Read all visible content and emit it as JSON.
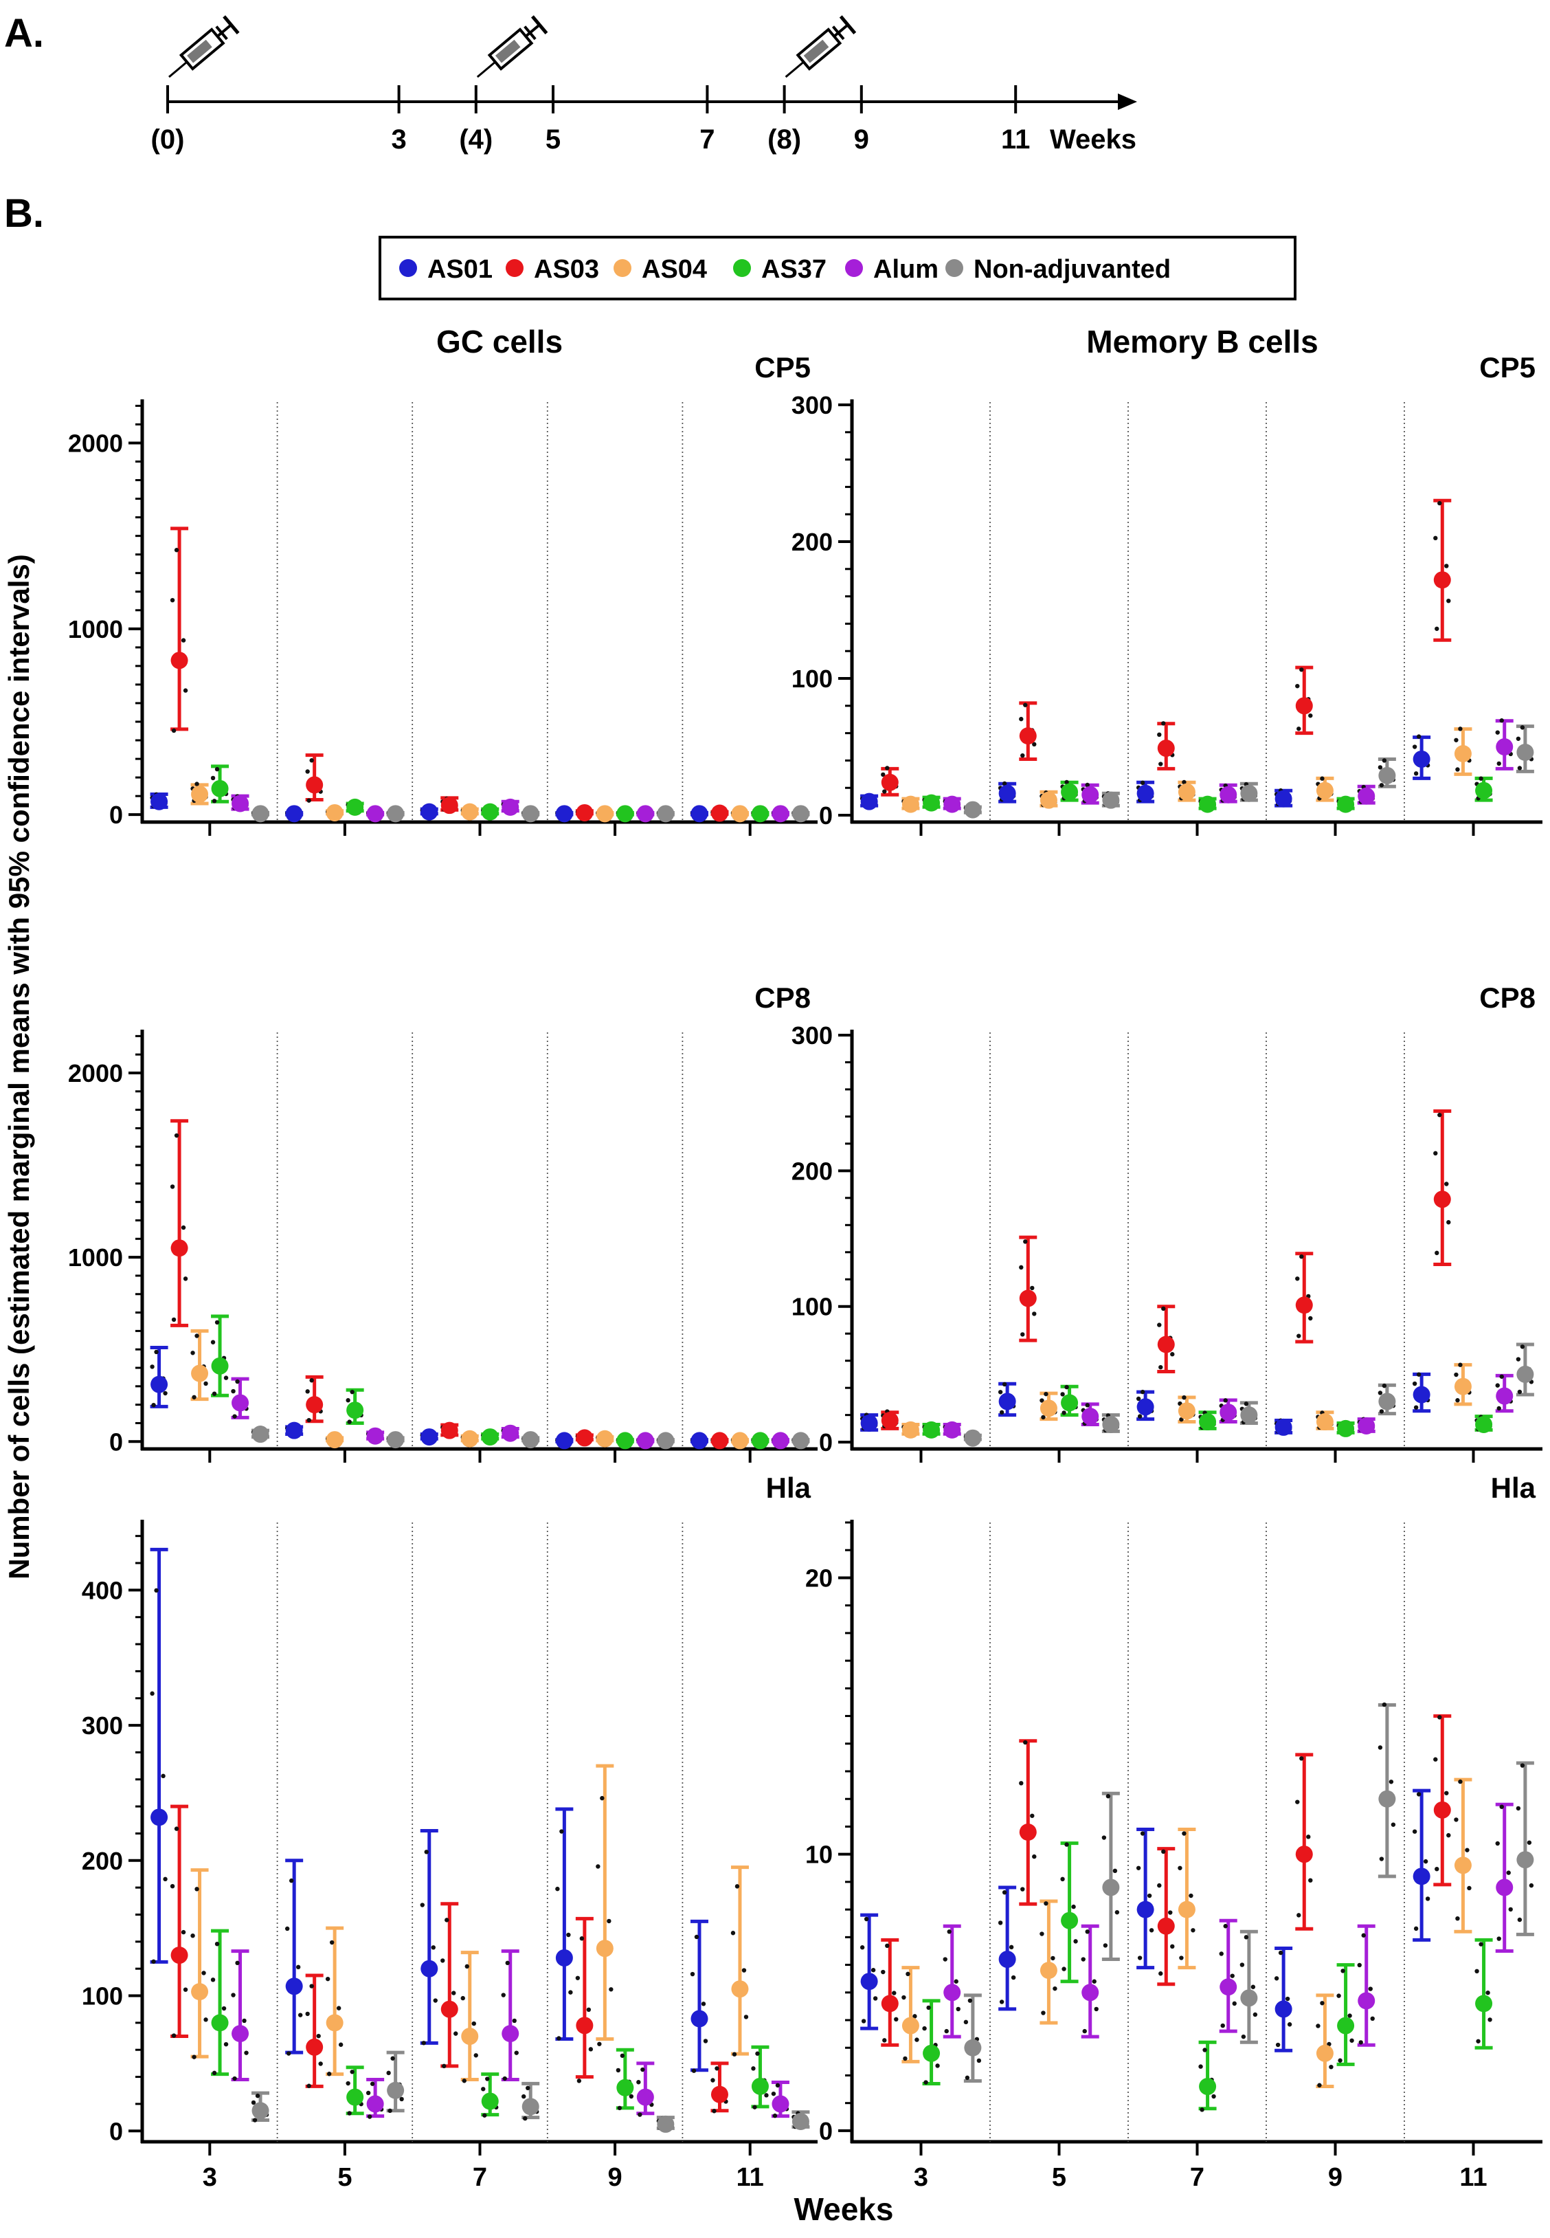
{
  "panel_labels": {
    "a": "A.",
    "b": "B."
  },
  "timeline": {
    "ticks": [
      {
        "week": 0,
        "label": "(0)",
        "vaccination": true
      },
      {
        "week": 3,
        "label": "3",
        "vaccination": false
      },
      {
        "week": 4,
        "label": "(4)",
        "vaccination": true
      },
      {
        "week": 5,
        "label": "5",
        "vaccination": false
      },
      {
        "week": 7,
        "label": "7",
        "vaccination": false
      },
      {
        "week": 8,
        "label": "(8)",
        "vaccination": true
      },
      {
        "week": 9,
        "label": "9",
        "vaccination": false
      },
      {
        "week": 11,
        "label": "11",
        "vaccination": false
      }
    ],
    "unit": "Weeks",
    "injection_icon": "syringe-icon"
  },
  "legend": [
    {
      "name": "AS01",
      "color": "#1f1fd1"
    },
    {
      "name": "AS03",
      "color": "#e8161b"
    },
    {
      "name": "AS04",
      "color": "#f7ad5b"
    },
    {
      "name": "AS37",
      "color": "#22c41f"
    },
    {
      "name": "Alum",
      "color": "#a51fd8"
    },
    {
      "name": "Non-adjuvanted",
      "color": "#8a8a8a"
    }
  ],
  "column_titles": {
    "gc": "GC cells",
    "mem": "Memory B cells"
  },
  "y_axis_title": "Number of cells (estimated marginal means with 95% confidence intervals)",
  "x_axis_title": "Weeks",
  "chart_data": [
    {
      "id": "gc-cp5",
      "type": "scatter",
      "title": "CP5",
      "column": "GC cells",
      "categories": [
        "3",
        "5",
        "7",
        "9",
        "11"
      ],
      "yticks": [
        0,
        1000,
        2000
      ],
      "ylim": [
        -40,
        2220
      ],
      "xlabel": "",
      "ylabel": "",
      "series": [
        {
          "name": "AS01",
          "means": [
            70,
            5,
            15,
            5,
            5
          ],
          "lower": [
            40,
            0,
            5,
            0,
            0
          ],
          "upper": [
            110,
            10,
            30,
            10,
            10
          ]
        },
        {
          "name": "AS03",
          "means": [
            830,
            160,
            50,
            10,
            8
          ],
          "lower": [
            460,
            80,
            25,
            5,
            3
          ],
          "upper": [
            1540,
            320,
            90,
            20,
            15
          ]
        },
        {
          "name": "AS04",
          "means": [
            110,
            10,
            15,
            5,
            5
          ],
          "lower": [
            60,
            5,
            5,
            0,
            0
          ],
          "upper": [
            160,
            20,
            30,
            10,
            10
          ]
        },
        {
          "name": "AS37",
          "means": [
            140,
            40,
            15,
            5,
            5
          ],
          "lower": [
            70,
            20,
            5,
            0,
            0
          ],
          "upper": [
            260,
            60,
            30,
            10,
            10
          ]
        },
        {
          "name": "Alum",
          "means": [
            60,
            5,
            40,
            5,
            5
          ],
          "lower": [
            30,
            0,
            20,
            0,
            0
          ],
          "upper": [
            100,
            10,
            70,
            10,
            10
          ]
        },
        {
          "name": "Non-adjuvanted",
          "means": [
            5,
            5,
            5,
            5,
            5
          ],
          "lower": [
            0,
            0,
            0,
            0,
            0
          ],
          "upper": [
            10,
            10,
            10,
            10,
            10
          ]
        }
      ]
    },
    {
      "id": "mem-cp5",
      "type": "scatter",
      "title": "CP5",
      "column": "Memory B cells",
      "categories": [
        "3",
        "5",
        "7",
        "9",
        "11"
      ],
      "yticks": [
        0,
        100,
        200,
        300
      ],
      "ylim": [
        -5,
        302
      ],
      "xlabel": "",
      "ylabel": "",
      "series": [
        {
          "name": "AS01",
          "means": [
            10,
            16,
            16,
            12,
            41
          ],
          "lower": [
            7,
            10,
            10,
            7,
            27
          ],
          "upper": [
            14,
            23,
            24,
            18,
            57
          ]
        },
        {
          "name": "AS03",
          "means": [
            24,
            58,
            49,
            80,
            172
          ],
          "lower": [
            15,
            41,
            34,
            60,
            128
          ],
          "upper": [
            34,
            82,
            67,
            108,
            230
          ]
        },
        {
          "name": "AS04",
          "means": [
            8,
            11,
            17,
            18,
            45
          ],
          "lower": [
            5,
            7,
            11,
            11,
            30
          ],
          "upper": [
            12,
            17,
            24,
            27,
            63
          ]
        },
        {
          "name": "AS37",
          "means": [
            9,
            17,
            8,
            8,
            18
          ],
          "lower": [
            6,
            11,
            5,
            5,
            11
          ],
          "upper": [
            13,
            24,
            12,
            12,
            27
          ]
        },
        {
          "name": "Alum",
          "means": [
            8,
            15,
            15,
            14,
            50
          ],
          "lower": [
            5,
            9,
            10,
            9,
            34
          ],
          "upper": [
            12,
            22,
            22,
            21,
            69
          ]
        },
        {
          "name": "Non-adjuvanted",
          "means": [
            4,
            11,
            16,
            29,
            46
          ],
          "lower": [
            2,
            7,
            11,
            21,
            32
          ],
          "upper": [
            6,
            16,
            23,
            41,
            65
          ]
        }
      ]
    },
    {
      "id": "gc-cp8",
      "type": "scatter",
      "title": "CP8",
      "column": "GC cells",
      "categories": [
        "3",
        "5",
        "7",
        "9",
        "11"
      ],
      "yticks": [
        0,
        1000,
        2000
      ],
      "ylim": [
        -40,
        2220
      ],
      "xlabel": "",
      "ylabel": "",
      "series": [
        {
          "name": "AS01",
          "means": [
            310,
            60,
            25,
            5,
            5
          ],
          "lower": [
            190,
            40,
            15,
            0,
            0
          ],
          "upper": [
            510,
            80,
            40,
            10,
            10
          ]
        },
        {
          "name": "AS03",
          "means": [
            1050,
            200,
            60,
            20,
            5
          ],
          "lower": [
            630,
            110,
            35,
            10,
            0
          ],
          "upper": [
            1740,
            350,
            90,
            35,
            10
          ]
        },
        {
          "name": "AS04",
          "means": [
            370,
            10,
            15,
            15,
            5
          ],
          "lower": [
            230,
            5,
            5,
            5,
            0
          ],
          "upper": [
            600,
            20,
            30,
            25,
            10
          ]
        },
        {
          "name": "AS37",
          "means": [
            410,
            170,
            25,
            5,
            5
          ],
          "lower": [
            250,
            100,
            15,
            0,
            0
          ],
          "upper": [
            680,
            280,
            40,
            10,
            10
          ]
        },
        {
          "name": "Alum",
          "means": [
            210,
            30,
            45,
            5,
            5
          ],
          "lower": [
            130,
            15,
            25,
            0,
            0
          ],
          "upper": [
            340,
            50,
            70,
            10,
            10
          ]
        },
        {
          "name": "Non-adjuvanted",
          "means": [
            40,
            10,
            10,
            5,
            5
          ],
          "lower": [
            25,
            5,
            5,
            0,
            0
          ],
          "upper": [
            60,
            20,
            20,
            10,
            10
          ]
        }
      ]
    },
    {
      "id": "mem-cp8",
      "type": "scatter",
      "title": "CP8",
      "column": "Memory B cells",
      "categories": [
        "3",
        "5",
        "7",
        "9",
        "11"
      ],
      "yticks": [
        0,
        100,
        200,
        300
      ],
      "ylim": [
        -5,
        302
      ],
      "xlabel": "",
      "ylabel": "",
      "series": [
        {
          "name": "AS01",
          "means": [
            14,
            30,
            26,
            11,
            35
          ],
          "lower": [
            9,
            20,
            17,
            7,
            23
          ],
          "upper": [
            20,
            43,
            37,
            16,
            50
          ]
        },
        {
          "name": "AS03",
          "means": [
            16,
            106,
            72,
            101,
            179
          ],
          "lower": [
            10,
            75,
            52,
            74,
            131
          ],
          "upper": [
            22,
            151,
            100,
            139,
            244
          ]
        },
        {
          "name": "AS04",
          "means": [
            9,
            25,
            23,
            15,
            41
          ],
          "lower": [
            6,
            17,
            15,
            10,
            28
          ],
          "upper": [
            13,
            36,
            33,
            22,
            57
          ]
        },
        {
          "name": "AS37",
          "means": [
            9,
            29,
            15,
            10,
            13
          ],
          "lower": [
            6,
            20,
            10,
            7,
            9
          ],
          "upper": [
            13,
            41,
            22,
            14,
            19
          ]
        },
        {
          "name": "Alum",
          "means": [
            9,
            19,
            22,
            12,
            34
          ],
          "lower": [
            6,
            13,
            15,
            8,
            23
          ],
          "upper": [
            13,
            28,
            31,
            17,
            49
          ]
        },
        {
          "name": "Non-adjuvanted",
          "means": [
            3,
            13,
            20,
            30,
            50
          ],
          "lower": [
            2,
            8,
            14,
            21,
            35
          ],
          "upper": [
            5,
            20,
            29,
            42,
            72
          ]
        }
      ]
    },
    {
      "id": "gc-hla",
      "type": "scatter",
      "title": "Hla",
      "column": "GC cells",
      "categories": [
        "3",
        "5",
        "7",
        "9",
        "11"
      ],
      "yticks": [
        0,
        100,
        200,
        300,
        400
      ],
      "ylim": [
        -8,
        450
      ],
      "xlabel": "Weeks",
      "ylabel": "",
      "series": [
        {
          "name": "AS01",
          "means": [
            232,
            107,
            120,
            128,
            83
          ],
          "lower": [
            125,
            58,
            65,
            68,
            45
          ],
          "upper": [
            430,
            200,
            222,
            238,
            155
          ]
        },
        {
          "name": "AS03",
          "means": [
            130,
            62,
            90,
            78,
            27
          ],
          "lower": [
            70,
            33,
            48,
            40,
            15
          ],
          "upper": [
            240,
            115,
            168,
            157,
            50
          ]
        },
        {
          "name": "AS04",
          "means": [
            103,
            80,
            70,
            135,
            105
          ],
          "lower": [
            55,
            42,
            38,
            68,
            57
          ],
          "upper": [
            193,
            150,
            132,
            270,
            195
          ]
        },
        {
          "name": "AS37",
          "means": [
            80,
            25,
            22,
            32,
            33
          ],
          "lower": [
            42,
            13,
            12,
            17,
            18
          ],
          "upper": [
            148,
            47,
            42,
            60,
            62
          ]
        },
        {
          "name": "Alum",
          "means": [
            72,
            20,
            72,
            25,
            20
          ],
          "lower": [
            38,
            11,
            38,
            13,
            11
          ],
          "upper": [
            133,
            38,
            133,
            50,
            36
          ]
        },
        {
          "name": "Non-adjuvanted",
          "means": [
            15,
            30,
            18,
            5,
            7
          ],
          "lower": [
            8,
            15,
            10,
            2,
            3
          ],
          "upper": [
            28,
            58,
            35,
            10,
            14
          ]
        }
      ]
    },
    {
      "id": "mem-hla",
      "type": "scatter",
      "title": "Hla",
      "column": "Memory B cells",
      "categories": [
        "3",
        "5",
        "7",
        "9",
        "11"
      ],
      "yticks": [
        0,
        10,
        20
      ],
      "ylim": [
        -0.4,
        22
      ],
      "xlabel": "Weeks",
      "ylabel": "",
      "series": [
        {
          "name": "AS01",
          "means": [
            5.4,
            6.2,
            8.0,
            4.4,
            9.2
          ],
          "lower": [
            3.7,
            4.4,
            5.9,
            2.9,
            6.9
          ],
          "upper": [
            7.8,
            8.8,
            10.9,
            6.6,
            12.3
          ]
        },
        {
          "name": "AS03",
          "means": [
            4.6,
            10.8,
            7.4,
            10.0,
            11.6
          ],
          "lower": [
            3.1,
            8.2,
            5.3,
            7.3,
            8.9
          ],
          "upper": [
            6.9,
            14.1,
            10.2,
            13.6,
            15.0
          ]
        },
        {
          "name": "AS04",
          "means": [
            3.8,
            5.8,
            8.0,
            2.8,
            9.6
          ],
          "lower": [
            2.5,
            3.9,
            5.9,
            1.6,
            7.2
          ],
          "upper": [
            5.9,
            8.3,
            10.9,
            4.9,
            12.7
          ]
        },
        {
          "name": "AS37",
          "means": [
            2.8,
            7.6,
            1.6,
            3.8,
            4.6
          ],
          "lower": [
            1.7,
            5.4,
            0.8,
            2.4,
            3.0
          ],
          "upper": [
            4.7,
            10.4,
            3.2,
            6.0,
            6.9
          ]
        },
        {
          "name": "Alum",
          "means": [
            5.0,
            5.0,
            5.2,
            4.7,
            8.8
          ],
          "lower": [
            3.4,
            3.4,
            3.6,
            3.1,
            6.5
          ],
          "upper": [
            7.4,
            7.4,
            7.6,
            7.4,
            11.8
          ]
        },
        {
          "name": "Non-adjuvanted",
          "means": [
            3.0,
            8.8,
            4.8,
            12.0,
            9.8
          ],
          "lower": [
            1.8,
            6.2,
            3.2,
            9.2,
            7.1
          ],
          "upper": [
            4.9,
            12.2,
            7.2,
            15.4,
            13.3
          ]
        }
      ]
    }
  ]
}
